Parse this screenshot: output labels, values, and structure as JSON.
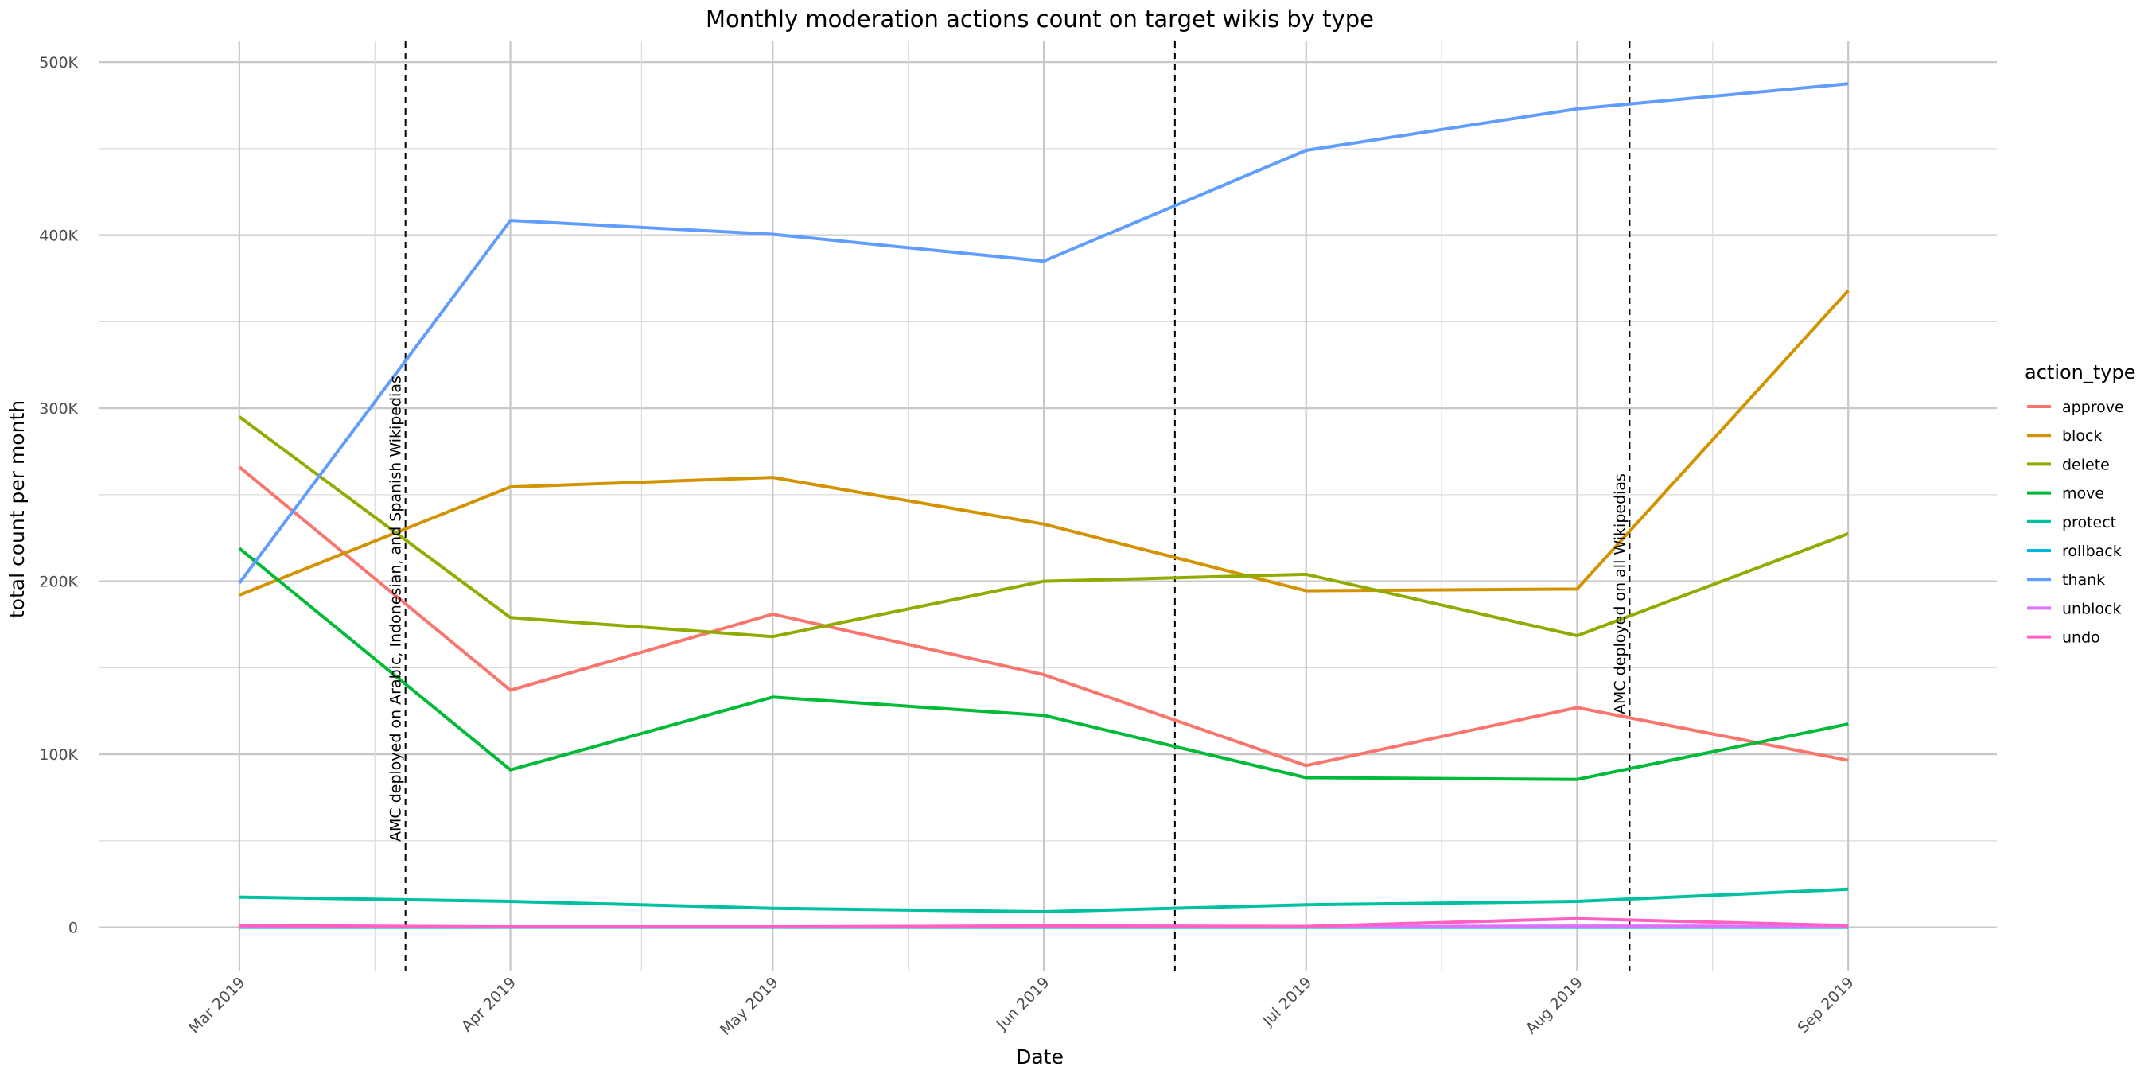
{
  "chart_data": {
    "type": "line",
    "title": "Monthly moderation actions count on target wikis by type",
    "xlabel": "Date",
    "ylabel": "total count per month",
    "x": [
      "2019-03-01",
      "2019-04-01",
      "2019-05-01",
      "2019-06-01",
      "2019-07-01",
      "2019-08-01",
      "2019-09-01"
    ],
    "x_tick_labels": [
      "Mar 2019",
      "Apr 2019",
      "May 2019",
      "Jun 2019",
      "Jul 2019",
      "Aug 2019",
      "Sep 2019"
    ],
    "y_tick_values": [
      0,
      100000,
      200000,
      300000,
      400000,
      500000
    ],
    "y_tick_labels": [
      "0",
      "100K",
      "200K",
      "300K",
      "400K",
      "500K"
    ],
    "ylim": [
      -25000,
      512000
    ],
    "xlim": [
      "2019-02-13",
      "2019-09-18"
    ],
    "grid": true,
    "legend": {
      "title": "action_type",
      "position": "right"
    },
    "series": [
      {
        "name": "approve",
        "color": "#F8766D",
        "values": [
          266000,
          137000,
          181000,
          146000,
          93500,
          127000,
          96500
        ]
      },
      {
        "name": "block",
        "color": "#D39200",
        "values": [
          192000,
          254500,
          260000,
          233000,
          194500,
          195500,
          368000
        ]
      },
      {
        "name": "delete",
        "color": "#93AA00",
        "values": [
          295000,
          179000,
          168000,
          200000,
          204000,
          168500,
          227500
        ]
      },
      {
        "name": "move",
        "color": "#00BA38",
        "values": [
          219000,
          91000,
          133000,
          122500,
          86500,
          85500,
          117500
        ]
      },
      {
        "name": "protect",
        "color": "#00C19F",
        "values": [
          17500,
          15000,
          11000,
          9000,
          13000,
          15000,
          22000
        ]
      },
      {
        "name": "rollback",
        "color": "#00B9E3",
        "values": [
          0,
          0,
          0,
          0,
          0,
          0,
          0
        ]
      },
      {
        "name": "thank",
        "color": "#619CFF",
        "values": [
          199000,
          408500,
          400500,
          385000,
          449000,
          473000,
          487500
        ]
      },
      {
        "name": "unblock",
        "color": "#DB72FB",
        "values": [
          500,
          200,
          200,
          300,
          300,
          700,
          500
        ]
      },
      {
        "name": "undo",
        "color": "#FF61C3",
        "values": [
          1000,
          300,
          300,
          800,
          500,
          5000,
          1000
        ]
      }
    ],
    "annotations": [
      {
        "x": "2019-03-20",
        "text": "AMC deployed on Arabic, Indonesian, and Spanish Wikipedias"
      },
      {
        "x": "2019-06-16",
        "text": ""
      },
      {
        "x": "2019-08-07",
        "text": "AMC deployed on all Wikipedias"
      }
    ]
  }
}
